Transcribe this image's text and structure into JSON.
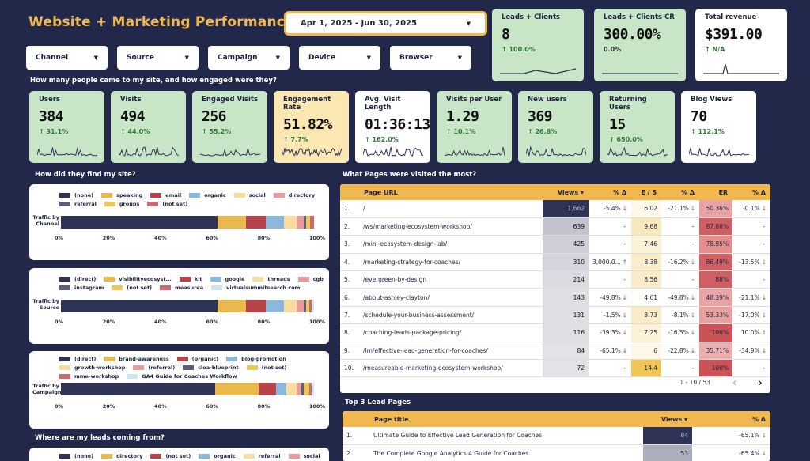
{
  "header": {
    "title": "Website + Marketing Performance Report",
    "date_range": "Apr 1, 2025 - Jun 30, 2025"
  },
  "filters": [
    {
      "label": "Channel"
    },
    {
      "label": "Source"
    },
    {
      "label": "Campaign"
    },
    {
      "label": "Device"
    },
    {
      "label": "Browser"
    }
  ],
  "top_kpis": [
    {
      "label": "Leads + Clients",
      "value": "8",
      "change": "↑ 100.0%"
    },
    {
      "label": "Leads + Clients CR",
      "value": "300.00%",
      "change": "0.0%"
    },
    {
      "label": "Total revenue",
      "value": "$391.00",
      "change": "↑ N/A"
    }
  ],
  "engagement": {
    "question": "How many people came to my site, and how engaged were they?",
    "kpis": [
      {
        "label": "Users",
        "value": "384",
        "change": "↑ 31.1%"
      },
      {
        "label": "Visits",
        "value": "494",
        "change": "↑ 44.0%"
      },
      {
        "label": "Engaged Visits",
        "value": "256",
        "change": "↑ 55.2%"
      },
      {
        "label": "Engagement Rate",
        "value": "51.82%",
        "change": "↑ 7.7%"
      },
      {
        "label": "Avg. Visit Length",
        "value": "01:36:13",
        "change": "↑ 162.0%"
      },
      {
        "label": "Visits per User",
        "value": "1.29",
        "change": "↑ 10.1%"
      },
      {
        "label": "New users",
        "value": "369",
        "change": "↑ 26.8%"
      },
      {
        "label": "Returning Users",
        "value": "15",
        "change": "↑ 650.0%"
      },
      {
        "label": "Blog Views",
        "value": "70",
        "change": "↑ 112.1%"
      }
    ]
  },
  "traffic": {
    "question": "How did they find my site?",
    "ticks": [
      "0%",
      "20%",
      "40%",
      "60%",
      "80%",
      "100%"
    ],
    "channel": {
      "ylabel": "Traffic by Channel",
      "legend": [
        {
          "name": "(none)",
          "color": "#2f3456"
        },
        {
          "name": "speaking",
          "color": "#e9b94d"
        },
        {
          "name": "email",
          "color": "#b9434b"
        },
        {
          "name": "organic",
          "color": "#8cb8dc"
        },
        {
          "name": "social",
          "color": "#f9dc9f"
        },
        {
          "name": "directory",
          "color": "#e89a9c"
        },
        {
          "name": "referral",
          "color": "#5a6078"
        },
        {
          "name": "groups",
          "color": "#f0c657"
        },
        {
          "name": "(not set)",
          "color": "#c96a72"
        }
      ],
      "values": [
        62,
        11,
        8,
        7,
        5,
        3,
        1,
        1.5,
        1.5
      ]
    },
    "source": {
      "ylabel": "Traffic by Source",
      "legend": [
        {
          "name": "(direct)",
          "color": "#2f3456"
        },
        {
          "name": "visibilityecosyst...",
          "color": "#e9b94d"
        },
        {
          "name": "kit",
          "color": "#b9434b"
        },
        {
          "name": "google",
          "color": "#8cb8dc"
        },
        {
          "name": "threads",
          "color": "#f9dc9f"
        },
        {
          "name": "cgb",
          "color": "#e89a9c"
        },
        {
          "name": "instagram",
          "color": "#5a6078"
        },
        {
          "name": "(not set)",
          "color": "#f0c657"
        },
        {
          "name": "measurea",
          "color": "#c96a72"
        },
        {
          "name": "virtualsummitsearch.com",
          "color": "#cfe2f0"
        }
      ],
      "values": [
        62,
        11,
        8,
        7,
        5,
        3,
        1,
        1,
        1,
        1
      ]
    },
    "campaign": {
      "ylabel": "Traffic by Campaign",
      "legend": [
        {
          "name": "(direct)",
          "color": "#2f3456"
        },
        {
          "name": "brand-awareness",
          "color": "#e9b94d"
        },
        {
          "name": "(organic)",
          "color": "#b9434b"
        },
        {
          "name": "blog-promotion",
          "color": "#8cb8dc"
        },
        {
          "name": "growth-workshop",
          "color": "#f9dc9f"
        },
        {
          "name": "(referral)",
          "color": "#e89a9c"
        },
        {
          "name": "cloa-blueprint",
          "color": "#5a6078"
        },
        {
          "name": "(not set)",
          "color": "#f0c657"
        },
        {
          "name": "mme-workshop",
          "color": "#c96a72"
        },
        {
          "name": "GA4 Guide for Coaches Workflow",
          "color": "#cfe2f0"
        }
      ],
      "values": [
        61,
        17,
        7,
        4,
        4,
        2,
        1,
        2,
        1,
        1
      ]
    }
  },
  "leads": {
    "question": "Where are my leads coming from?",
    "legend": [
      {
        "name": "(none)",
        "color": "#2f3456"
      },
      {
        "name": "directory",
        "color": "#e9b94d"
      },
      {
        "name": "(not set)",
        "color": "#b9434b"
      },
      {
        "name": "organic",
        "color": "#8cb8dc"
      },
      {
        "name": "referral",
        "color": "#f9dc9f"
      },
      {
        "name": "social",
        "color": "#e89a9c"
      }
    ]
  },
  "pages": {
    "question": "What Pages were visited the most?",
    "headers": [
      "Page URL",
      "Views ▾",
      "% Δ",
      "E / S",
      "% Δ",
      "ER",
      "% Δ"
    ],
    "rows": [
      {
        "n": "1.",
        "url": "/",
        "views": "1,662",
        "vd": "-5.4%",
        "vdd": "↓",
        "es": "6.02",
        "esd": "-21.1%",
        "esdd": "↓",
        "er": "50.36%",
        "erd": "-0.1%",
        "erdd": "↓"
      },
      {
        "n": "2.",
        "url": "/ws/marketing-ecosystem-workshop/",
        "views": "639",
        "vd": "-",
        "vdd": "",
        "es": "9.68",
        "esd": "-",
        "esdd": "",
        "er": "87.88%",
        "erd": "-",
        "erdd": ""
      },
      {
        "n": "3.",
        "url": "/mini-ecosystem-design-lab/",
        "views": "425",
        "vd": "-",
        "vdd": "",
        "es": "7.46",
        "esd": "-",
        "esdd": "",
        "er": "78.95%",
        "erd": "-",
        "erdd": ""
      },
      {
        "n": "4.",
        "url": "/marketing-strategy-for-coaches/",
        "views": "310",
        "vd": "3,000.0...",
        "vdd": "↑",
        "es": "8.38",
        "esd": "-16.2%",
        "esdd": "↓",
        "er": "86.49%",
        "erd": "-13.5%",
        "erdd": "↓"
      },
      {
        "n": "5.",
        "url": "/evergreen-by-design",
        "views": "214",
        "vd": "-",
        "vdd": "",
        "es": "8.56",
        "esd": "-",
        "esdd": "",
        "er": "88%",
        "erd": "-",
        "erdd": ""
      },
      {
        "n": "6.",
        "url": "/about-ashley-clayton/",
        "views": "143",
        "vd": "-49.8%",
        "vdd": "↓",
        "es": "4.61",
        "esd": "-49.8%",
        "esdd": "↓",
        "er": "48.39%",
        "erd": "-21.1%",
        "erdd": "↓"
      },
      {
        "n": "7.",
        "url": "/schedule-your-business-assessment/",
        "views": "131",
        "vd": "-1.5%",
        "vdd": "↓",
        "es": "8.73",
        "esd": "-8.1%",
        "esdd": "↓",
        "er": "53.33%",
        "erd": "-17.0%",
        "erdd": "↓"
      },
      {
        "n": "8.",
        "url": "/coaching-leads-package-pricing/",
        "views": "116",
        "vd": "-39.3%",
        "vdd": "↓",
        "es": "7.25",
        "esd": "-16.5%",
        "esdd": "↓",
        "er": "100%",
        "erd": "10.0%",
        "erdd": "↑"
      },
      {
        "n": "9.",
        "url": "/lm/effective-lead-generation-for-coaches/",
        "views": "84",
        "vd": "-65.1%",
        "vdd": "↓",
        "es": "6",
        "esd": "-22.8%",
        "esdd": "↓",
        "er": "35.71%",
        "erd": "-34.9%",
        "erdd": "↓"
      },
      {
        "n": "10.",
        "url": "/measureable-marketing-ecosystem-workshop/",
        "views": "72",
        "vd": "-",
        "vdd": "",
        "es": "14.4",
        "esd": "-",
        "esdd": "",
        "er": "100%",
        "erd": "-",
        "erdd": ""
      }
    ],
    "pagination": "1 - 10 / 53"
  },
  "lead_pages": {
    "title": "Top 3 Lead Pages",
    "headers": [
      "Page title",
      "Views ▾",
      "% Δ"
    ],
    "rows": [
      {
        "n": "1.",
        "title": "Ultimate Guide to Effective Lead Generation for Coaches",
        "views": "84",
        "d": "-65.1%"
      },
      {
        "n": "2.",
        "title": "The Complete Google Analytics 4 Guide for Coaches",
        "views": "53",
        "d": "-65.4%"
      }
    ]
  }
}
